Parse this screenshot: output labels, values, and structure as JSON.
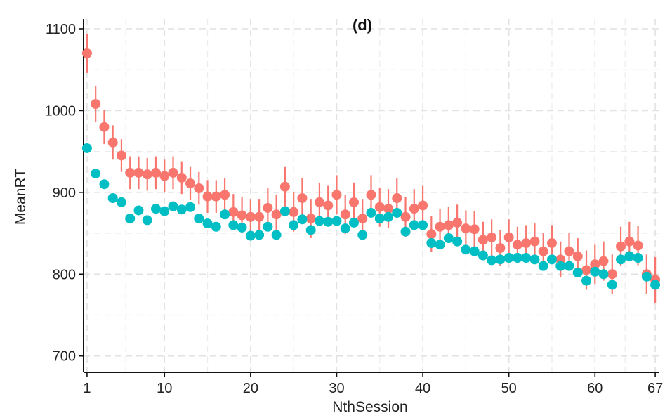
{
  "chart_data": {
    "type": "scatter",
    "title": "(d)",
    "xlabel": "NthSession",
    "ylabel": "MeanRT",
    "xlim": [
      0.6,
      67.4
    ],
    "ylim": [
      680,
      1112
    ],
    "xticks": [
      1,
      10,
      20,
      30,
      40,
      50,
      60,
      67
    ],
    "yticks": [
      700,
      800,
      900,
      1000,
      1100
    ],
    "grid": true,
    "legend": "none",
    "series": [
      {
        "color": "#F8766D",
        "x": [
          1,
          2,
          3,
          4,
          5,
          6,
          7,
          8,
          9,
          10,
          11,
          12,
          13,
          14,
          15,
          16,
          17,
          18,
          19,
          20,
          21,
          22,
          23,
          24,
          25,
          26,
          27,
          28,
          29,
          30,
          31,
          32,
          33,
          34,
          35,
          36,
          37,
          38,
          39,
          40,
          41,
          42,
          43,
          44,
          45,
          46,
          47,
          48,
          49,
          50,
          51,
          52,
          53,
          54,
          55,
          56,
          57,
          58,
          59,
          60,
          61,
          62,
          63,
          64,
          65,
          66,
          67
        ],
        "y": [
          1070,
          1008,
          980,
          961,
          945,
          924,
          924,
          922,
          924,
          920,
          924,
          918,
          911,
          905,
          895,
          895,
          897,
          876,
          872,
          870,
          870,
          881,
          873,
          907,
          876,
          893,
          868,
          888,
          884,
          897,
          873,
          888,
          868,
          897,
          882,
          880,
          893,
          870,
          880,
          884,
          849,
          858,
          860,
          863,
          856,
          855,
          842,
          845,
          832,
          845,
          836,
          838,
          840,
          828,
          838,
          818,
          828,
          822,
          805,
          812,
          816,
          800,
          834,
          840,
          835,
          800,
          793
        ],
        "err": [
          24,
          22,
          21,
          21,
          20,
          20,
          20,
          20,
          20,
          20,
          20,
          20,
          20,
          20,
          20,
          20,
          20,
          22,
          22,
          22,
          22,
          24,
          24,
          24,
          24,
          24,
          24,
          24,
          24,
          24,
          24,
          24,
          24,
          24,
          24,
          24,
          24,
          24,
          24,
          24,
          22,
          22,
          22,
          22,
          22,
          22,
          22,
          22,
          22,
          22,
          22,
          22,
          22,
          22,
          22,
          22,
          22,
          22,
          24,
          24,
          24,
          24,
          24,
          24,
          24,
          24,
          28
        ]
      },
      {
        "color": "#00BFC4",
        "x": [
          1,
          2,
          3,
          4,
          5,
          6,
          7,
          8,
          9,
          10,
          11,
          12,
          13,
          14,
          15,
          16,
          17,
          18,
          19,
          20,
          21,
          22,
          23,
          24,
          25,
          26,
          27,
          28,
          29,
          30,
          31,
          32,
          33,
          34,
          35,
          36,
          37,
          38,
          39,
          40,
          41,
          42,
          43,
          44,
          45,
          46,
          47,
          48,
          49,
          50,
          51,
          52,
          53,
          54,
          55,
          56,
          57,
          58,
          59,
          60,
          61,
          62,
          63,
          64,
          65,
          66,
          67
        ],
        "y": [
          954,
          923,
          910,
          893,
          888,
          868,
          878,
          866,
          880,
          877,
          883,
          879,
          882,
          868,
          862,
          858,
          873,
          860,
          857,
          847,
          848,
          858,
          848,
          877,
          860,
          867,
          854,
          865,
          864,
          865,
          856,
          863,
          848,
          875,
          868,
          870,
          875,
          852,
          860,
          860,
          838,
          836,
          844,
          840,
          830,
          828,
          823,
          817,
          818,
          820,
          820,
          820,
          818,
          810,
          818,
          810,
          810,
          802,
          792,
          803,
          800,
          787,
          818,
          822,
          820,
          797,
          787
        ]
      }
    ]
  }
}
